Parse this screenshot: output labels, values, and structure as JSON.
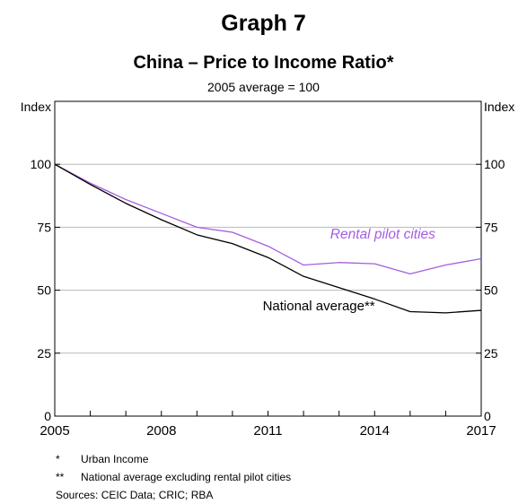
{
  "graph_number": "Graph 7",
  "chart_data": {
    "type": "line",
    "title": "China – Price to Income Ratio*",
    "subtitle": "2005 average = 100",
    "ylabel_left": "Index",
    "ylabel_right": "Index",
    "xlim": [
      2005,
      2017
    ],
    "ylim": [
      0,
      125
    ],
    "y_ticks": [
      0,
      25,
      50,
      75,
      100
    ],
    "x_ticks": [
      2005,
      2008,
      2011,
      2014,
      2017
    ],
    "x_tick_labels": [
      "2005",
      "2008",
      "2011",
      "2014",
      "2017"
    ],
    "grid": true,
    "series": [
      {
        "name": "Rental pilot cities",
        "color": "#a45ee0",
        "x": [
          2005,
          2006,
          2007,
          2008,
          2009,
          2010,
          2011,
          2012,
          2013,
          2014,
          2015,
          2016,
          2017
        ],
        "values": [
          100,
          92.5,
          86,
          80.5,
          75,
          73,
          67.5,
          60,
          61,
          60.5,
          56.5,
          60,
          62.5
        ]
      },
      {
        "name": "National average**",
        "color": "#000000",
        "x": [
          2005,
          2006,
          2007,
          2008,
          2009,
          2010,
          2011,
          2012,
          2013,
          2014,
          2015,
          2016,
          2017
        ],
        "values": [
          100,
          92,
          84.5,
          78,
          72,
          68.5,
          63,
          55.5,
          51,
          46.5,
          41.5,
          41,
          42
        ]
      }
    ]
  },
  "notes": [
    {
      "mark": "*",
      "text": "Urban Income"
    },
    {
      "mark": "**",
      "text": "National average excluding rental pilot cities"
    },
    {
      "mark": "",
      "text": "Sources:  CEIC Data; CRIC; RBA"
    }
  ]
}
